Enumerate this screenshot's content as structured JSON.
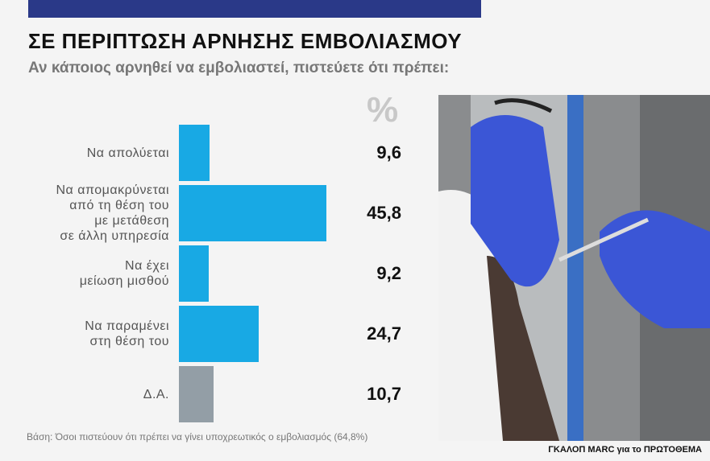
{
  "chart_data": {
    "type": "hbar",
    "title": "ΣΕ ΠΕΡΙΠΤΩΣΗ ΑΡΝΗΣΗΣ ΕΜΒΟΛΙΑΣΜΟΥ",
    "subtitle": "Αν κάποιος αρνηθεί να εμβολιαστεί, πιστεύετε ότι πρέπει:",
    "unit": "%",
    "categories": [
      "Να απολύεται",
      "Να απομακρύνεται\nαπό τη θέση του\nμε μετάθεση\nσε άλλη υπηρεσία",
      "Να έχει\nμείωση μισθού",
      "Να παραμένει\nστη θέση του",
      "Δ.Α."
    ],
    "values": [
      9.6,
      45.8,
      9.2,
      24.7,
      10.7
    ],
    "value_labels": [
      "9,6",
      "45,8",
      "9,2",
      "24,7",
      "10,7"
    ],
    "colors": [
      "#18a9e4",
      "#18a9e4",
      "#18a9e4",
      "#18a9e4",
      "#939ea6"
    ],
    "note": "Βάση: Όσοι πιστεύουν ότι πρέπει να γίνει υποχρεωτικός ο εμβολιασμός (64,8%)",
    "source": "ΓΚΑΛΟΠ MARC για το ΠΡΩΤΟΘΕΜΑ"
  }
}
